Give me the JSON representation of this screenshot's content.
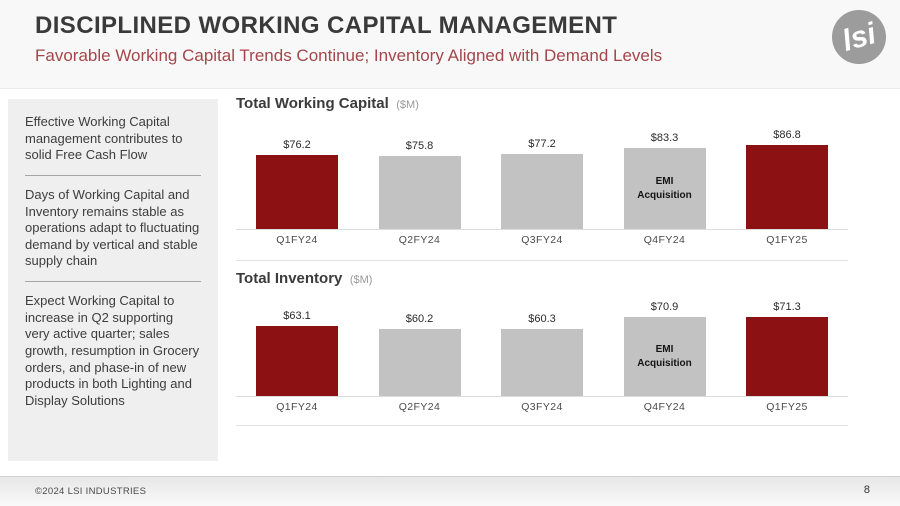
{
  "header": {
    "title": "DISCIPLINED WORKING CAPITAL MANAGEMENT",
    "subtitle": "Favorable Working Capital Trends Continue; Inventory Aligned with Demand Levels",
    "logo_text": "lsi"
  },
  "sidebar": {
    "notes": [
      "Effective Working Capital management contributes to solid Free Cash Flow",
      "Days of Working Capital and Inventory remains stable as operations adapt to fluctuating demand by vertical and stable supply chain",
      "Expect Working Capital to increase in Q2 supporting very active quarter; sales growth, resumption in Grocery orders, and phase-in of new products in both Lighting and Display Solutions"
    ]
  },
  "chart_data": [
    {
      "type": "bar",
      "title": "Total Working Capital",
      "unit_label": "($M)",
      "categories": [
        "Q1FY24",
        "Q2FY24",
        "Q3FY24",
        "Q4FY24",
        "Q1FY25"
      ],
      "values": [
        76.2,
        75.8,
        77.2,
        83.3,
        86.8
      ],
      "value_labels": [
        "$76.2",
        "$75.8",
        "$77.2",
        "$83.3",
        "$86.8"
      ],
      "bar_colors": [
        "#8B1112",
        "#C2C2C2",
        "#C2C2C2",
        "#C2C2C2",
        "#8B1112"
      ],
      "annotations": [
        {
          "index": 3,
          "lines": [
            "EMI",
            "Acquisition"
          ]
        }
      ],
      "xlabel": "",
      "ylabel": "",
      "ylim": [
        0,
        95
      ],
      "grid": false,
      "legend": null,
      "axis_visible": {
        "x": true,
        "y": false
      }
    },
    {
      "type": "bar",
      "title": "Total Inventory",
      "unit_label": "($M)",
      "categories": [
        "Q1FY24",
        "Q2FY24",
        "Q3FY24",
        "Q4FY24",
        "Q1FY25"
      ],
      "values": [
        63.1,
        60.2,
        60.3,
        70.9,
        71.3
      ],
      "value_labels": [
        "$63.1",
        "$60.2",
        "$60.3",
        "$70.9",
        "$71.3"
      ],
      "bar_colors": [
        "#8B1112",
        "#C2C2C2",
        "#C2C2C2",
        "#C2C2C2",
        "#8B1112"
      ],
      "annotations": [
        {
          "index": 3,
          "lines": [
            "EMI",
            "Acquisition"
          ]
        }
      ],
      "xlabel": "",
      "ylabel": "",
      "ylim": [
        0,
        80
      ],
      "grid": false,
      "legend": null,
      "axis_visible": {
        "x": true,
        "y": false
      }
    }
  ],
  "footer": {
    "copyright": "©2024 LSI INDUSTRIES",
    "page_number": "8"
  },
  "colors": {
    "accent_red": "#8B1112",
    "subtitle_red": "#A4464B",
    "bar_gray": "#C2C2C2",
    "sidebar_bg": "#EFEFEF"
  }
}
